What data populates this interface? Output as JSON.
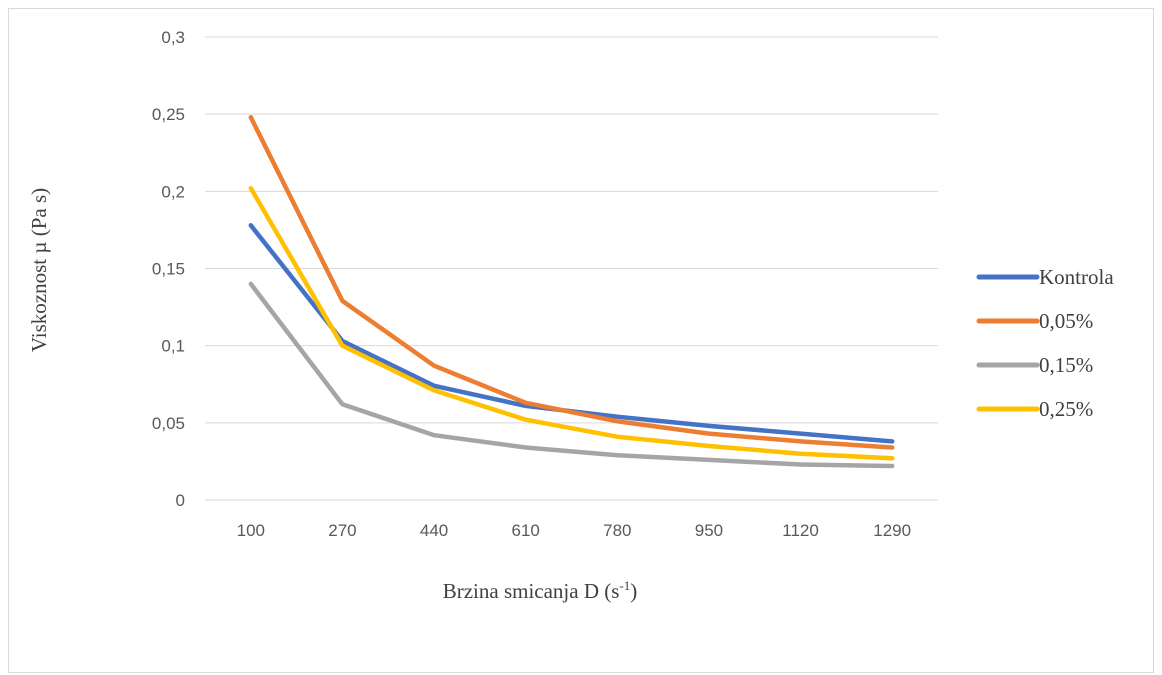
{
  "chart_data": {
    "type": "line",
    "title": "",
    "xlabel": "Brzina smicanja D (s",
    "xlabel_sup": "-1",
    "xlabel_end": ")",
    "ylabel": "Viskoznost µ (Pa s)",
    "categories": [
      "100",
      "270",
      "440",
      "610",
      "780",
      "950",
      "1120",
      "1290"
    ],
    "ylim": [
      0,
      0.3
    ],
    "yticks": [
      "0",
      "0,05",
      "0,1",
      "0,15",
      "0,2",
      "0,25",
      "0,3"
    ],
    "grid": true,
    "legend_position": "right",
    "series": [
      {
        "name": "Kontrola",
        "color": "#4472c4",
        "values": [
          0.178,
          0.103,
          0.074,
          0.061,
          0.054,
          0.048,
          0.043,
          0.038
        ]
      },
      {
        "name": "0,05%",
        "color": "#ed7d31",
        "values": [
          0.248,
          0.129,
          0.087,
          0.063,
          0.051,
          0.043,
          0.038,
          0.034
        ]
      },
      {
        "name": "0,15%",
        "color": "#a5a5a5",
        "values": [
          0.14,
          0.062,
          0.042,
          0.034,
          0.029,
          0.026,
          0.023,
          0.022
        ]
      },
      {
        "name": "0,25%",
        "color": "#ffc000",
        "values": [
          0.202,
          0.1,
          0.071,
          0.052,
          0.041,
          0.035,
          0.03,
          0.027
        ]
      }
    ]
  }
}
